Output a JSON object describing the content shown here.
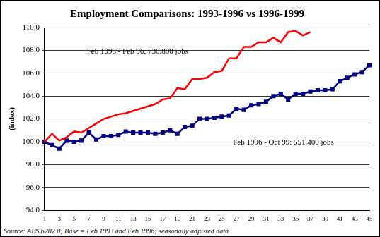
{
  "chart_data": {
    "type": "line",
    "title": "Employment Comparisons: 1993-1996 vs 1996-1999",
    "y_label": "(index)",
    "source": "Source: ABS 6202.0;  Base = Feb 1993 and Feb 1996; seasonally adjusted data",
    "categories": [
      "1",
      null,
      "3",
      null,
      "5",
      null,
      "7",
      null,
      "9",
      null,
      "11",
      null,
      "13",
      null,
      "15",
      null,
      "17",
      null,
      "19",
      null,
      "21",
      null,
      "23",
      null,
      "25",
      null,
      "27",
      null,
      "29",
      null,
      "31",
      null,
      "33",
      null,
      "35",
      null,
      "37",
      null,
      "39",
      null,
      "41",
      null,
      "43",
      null,
      "45"
    ],
    "series": [
      {
        "name": "Feb 1993 - Feb 96: 730.800 jobs",
        "color": "#ff0000",
        "marker": "none",
        "line_style": "solid",
        "values": [
          100.0,
          100.7,
          100.1,
          100.4,
          100.9,
          100.8,
          101.2,
          101.6,
          102.0,
          102.2,
          102.4,
          102.5,
          102.7,
          102.9,
          103.1,
          103.3,
          103.7,
          103.8,
          104.7,
          104.6,
          105.5,
          105.5,
          105.6,
          106.1,
          106.2,
          107.3,
          107.3,
          108.3,
          108.3,
          108.7,
          108.7,
          109.1,
          108.7,
          109.6,
          109.7,
          109.3,
          109.6,
          null,
          null,
          null,
          null,
          null,
          null,
          null,
          null
        ]
      },
      {
        "name": "Feb 1996 - Oct 99: 551,400 jobs",
        "color": "#000080",
        "marker": "square",
        "line_style": "solid",
        "values": [
          100.0,
          99.7,
          99.4,
          100.1,
          100.0,
          100.1,
          100.8,
          100.2,
          100.5,
          100.5,
          100.6,
          100.9,
          100.8,
          100.8,
          100.8,
          100.7,
          100.8,
          101.0,
          100.7,
          101.3,
          101.4,
          102.0,
          102.0,
          102.1,
          102.2,
          102.3,
          102.9,
          102.8,
          103.2,
          103.3,
          103.5,
          104.0,
          104.2,
          103.7,
          104.2,
          104.2,
          104.4,
          104.5,
          104.5,
          104.6,
          105.3,
          105.6,
          105.9,
          106.1,
          106.7
        ]
      }
    ],
    "ylim": [
      94,
      110
    ],
    "yticks": [
      {
        "value": 94,
        "label": "94.0"
      },
      {
        "value": 96,
        "label": "96.0"
      },
      {
        "value": 98,
        "label": "98.0"
      },
      {
        "value": 100,
        "label": "100.0"
      },
      {
        "value": 102,
        "label": "102.0"
      },
      {
        "value": 104,
        "label": "104.0"
      },
      {
        "value": 106,
        "label": "106.0"
      },
      {
        "value": 108,
        "label": "108.0"
      },
      {
        "value": 110,
        "label": "110.0"
      }
    ],
    "grid": true,
    "legend": "none"
  }
}
